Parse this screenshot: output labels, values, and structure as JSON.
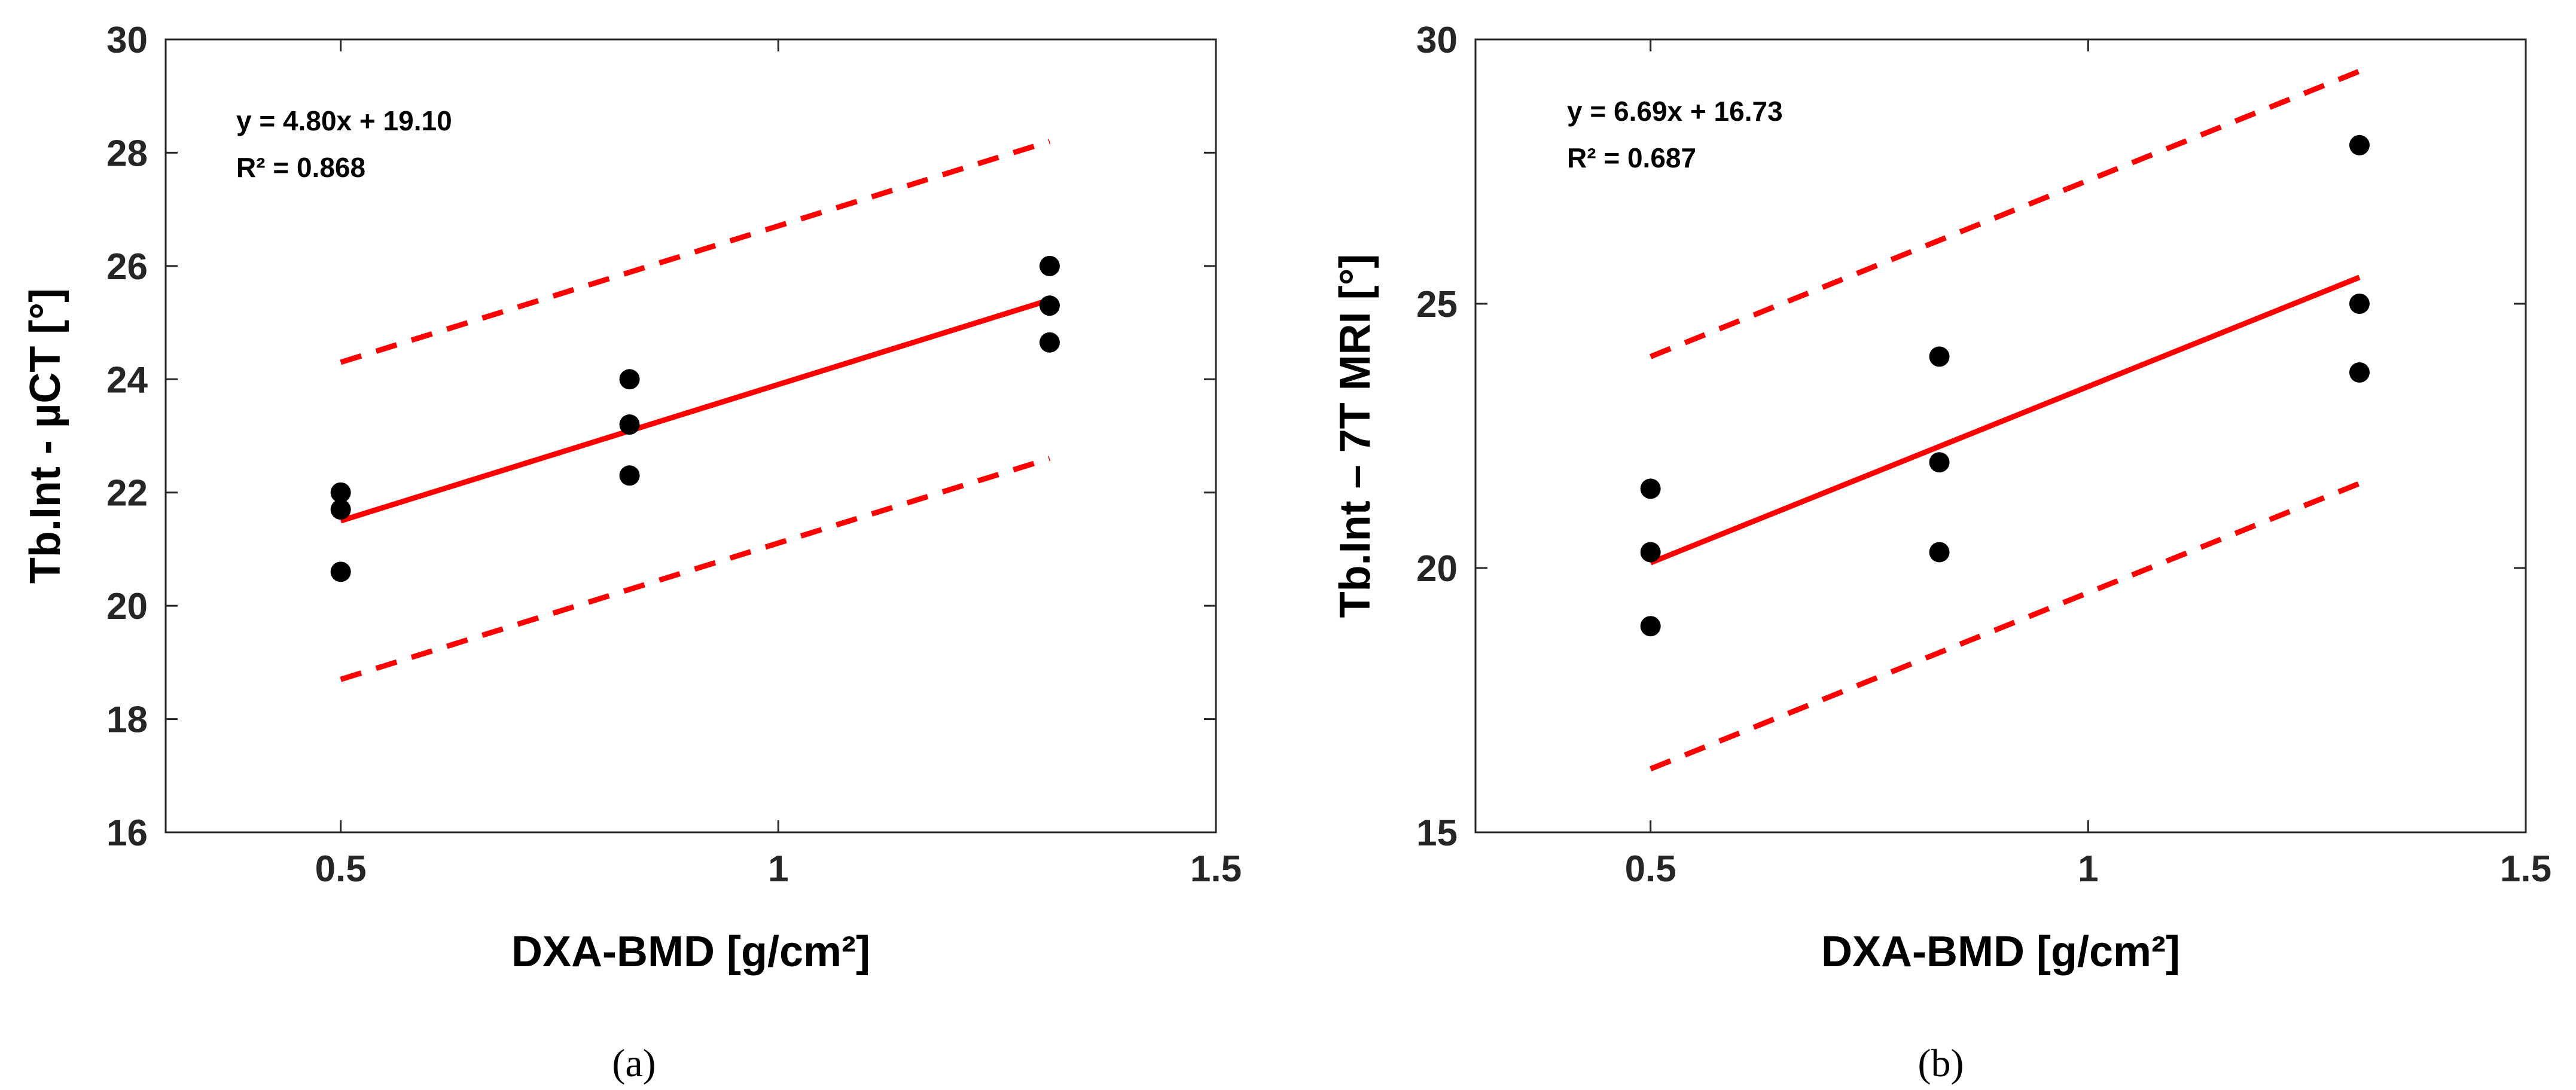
{
  "colors": {
    "fit": "#ff0000",
    "points": "#000000",
    "axes": "#262626"
  },
  "chart_data": [
    {
      "type": "scatter",
      "panel_label": "(a)",
      "xlabel": "DXA-BMD [g/cm²]",
      "ylabel": "Tb.Int - µCT [°]",
      "xlim": [
        0.3,
        1.5
      ],
      "ylim": [
        16,
        30
      ],
      "xticks": [
        0.5,
        1,
        1.5
      ],
      "xtick_labels": [
        "0.5",
        "1",
        "1.5"
      ],
      "yticks": [
        16,
        18,
        20,
        22,
        24,
        26,
        28,
        30
      ],
      "ytick_labels": [
        "16",
        "18",
        "20",
        "22",
        "24",
        "26",
        "28",
        "30"
      ],
      "equation": "y = 4.80x + 19.10",
      "r_squared": "R² = 0.868",
      "points": {
        "x": [
          0.5,
          0.5,
          0.5,
          0.83,
          0.83,
          0.83,
          1.31,
          1.31,
          1.31
        ],
        "y": [
          22.0,
          21.7,
          20.6,
          24.0,
          23.2,
          22.3,
          26.0,
          25.3,
          24.65
        ]
      },
      "fit_line": {
        "x": [
          0.5,
          1.31
        ],
        "y": [
          21.5,
          25.4
        ]
      },
      "upper_bound": {
        "x": [
          0.5,
          1.31
        ],
        "y": [
          24.3,
          28.2
        ]
      },
      "lower_bound": {
        "x": [
          0.5,
          1.31
        ],
        "y": [
          18.7,
          22.6
        ]
      }
    },
    {
      "type": "scatter",
      "panel_label": "(b)",
      "xlabel": "DXA-BMD [g/cm²]",
      "ylabel": "Tb.Int – 7T MRI [°]",
      "xlim": [
        0.3,
        1.5
      ],
      "ylim": [
        15,
        30
      ],
      "xticks": [
        0.5,
        1,
        1.5
      ],
      "xtick_labels": [
        "0.5",
        "1",
        "1.5"
      ],
      "yticks": [
        15,
        20,
        25,
        30
      ],
      "ytick_labels": [
        "15",
        "20",
        "25",
        "30"
      ],
      "equation": "y = 6.69x + 16.73",
      "r_squared": "R² = 0.687",
      "points": {
        "x": [
          0.5,
          0.5,
          0.5,
          0.83,
          0.83,
          0.83,
          1.31,
          1.31,
          1.31
        ],
        "y": [
          21.5,
          20.3,
          18.9,
          24.0,
          22.0,
          20.3,
          28.0,
          25.0,
          23.7
        ]
      },
      "fit_line": {
        "x": [
          0.5,
          1.31
        ],
        "y": [
          20.1,
          25.5
        ]
      },
      "upper_bound": {
        "x": [
          0.5,
          1.31
        ],
        "y": [
          24.0,
          29.4
        ]
      },
      "lower_bound": {
        "x": [
          0.5,
          1.31
        ],
        "y": [
          16.2,
          21.6
        ]
      }
    }
  ]
}
